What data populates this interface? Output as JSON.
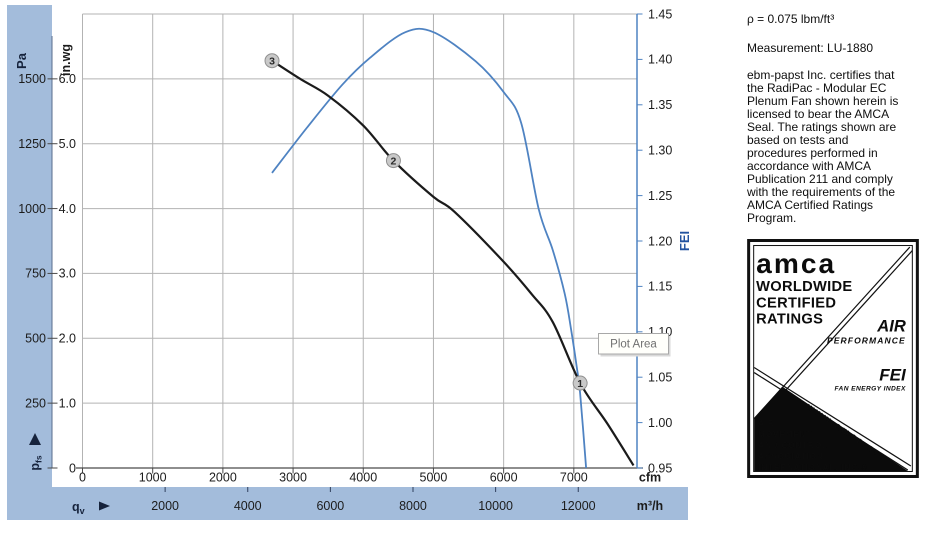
{
  "colors": {
    "band": "#a3bcdb",
    "grid": "#b3b3b3",
    "axis": "#4a4a4a",
    "band_tick": "#2f3f5c",
    "pressure_curve": "#1b1b1b",
    "fei_curve": "#4f83c2",
    "fei_axis": "#4f83c2",
    "fei_label": "#2253a0",
    "tick_label": "#1c1c1c",
    "marker_fill": "#c9c9c9",
    "marker_stroke": "#909090",
    "marker_text": "#2b2b2b",
    "tooltip_bg": "#fffffb",
    "tooltip_border": "#a8a8a8",
    "tooltip_shadow": "#d9d9d9",
    "tooltip_text": "#707070"
  },
  "chart_data": {
    "type": "line",
    "grid": true,
    "legend": "none",
    "plot_area_label": "Plot Area",
    "x_axis": {
      "unit_label": "cfm",
      "min": 0,
      "max": 7900,
      "ticks": [
        0,
        1000,
        2000,
        3000,
        4000,
        5000,
        6000,
        7000
      ]
    },
    "x_axis_secondary": {
      "unit_label": "m³/h",
      "symbol": "q",
      "symbol_sub": "v",
      "cfm_per_unit": 0.58858,
      "ticks": [
        2000,
        4000,
        6000,
        8000,
        10000,
        12000
      ]
    },
    "y_axis": {
      "unit_label": "in.wg",
      "min": 0,
      "max": 7,
      "ticks": [
        0,
        1,
        2,
        3,
        4,
        5,
        6
      ]
    },
    "y_axis_outer": {
      "unit_label": "Pa",
      "symbol": "p",
      "symbol_sub": "fs",
      "ticks": [
        250,
        500,
        750,
        1000,
        1250,
        1500
      ]
    },
    "y_axis_right": {
      "unit_label": "FEI",
      "min": 0.95,
      "max": 1.45,
      "ticks": [
        0.95,
        1.0,
        1.05,
        1.1,
        1.15,
        1.2,
        1.25,
        1.3,
        1.35,
        1.4,
        1.45
      ]
    },
    "series": [
      {
        "name": "fei-index",
        "axis": "right",
        "points": [
          [
            2700,
            1.275
          ],
          [
            3200,
            1.325
          ],
          [
            3700,
            1.372
          ],
          [
            4100,
            1.402
          ],
          [
            4600,
            1.43
          ],
          [
            5000,
            1.43
          ],
          [
            5600,
            1.398
          ],
          [
            6000,
            1.364
          ],
          [
            6250,
            1.33
          ],
          [
            6500,
            1.235
          ],
          [
            6700,
            1.19
          ],
          [
            6870,
            1.142
          ],
          [
            6960,
            1.103
          ],
          [
            7040,
            1.062
          ],
          [
            7090,
            1.032
          ],
          [
            7175,
            0.95
          ]
        ]
      },
      {
        "name": "fan-pressure",
        "axis": "left",
        "points": [
          [
            2700,
            6.28
          ],
          [
            3100,
            6.0
          ],
          [
            3500,
            5.74
          ],
          [
            4000,
            5.28
          ],
          [
            4430,
            4.74
          ],
          [
            5000,
            4.18
          ],
          [
            5300,
            3.95
          ],
          [
            6000,
            3.18
          ],
          [
            6400,
            2.68
          ],
          [
            6700,
            2.25
          ],
          [
            7090,
            1.31
          ],
          [
            7480,
            0.68
          ],
          [
            7850,
            0.04
          ]
        ]
      }
    ],
    "operating_points": [
      {
        "label": "3",
        "cfm": 2700,
        "inwg": 6.28
      },
      {
        "label": "2",
        "cfm": 4430,
        "inwg": 4.74
      },
      {
        "label": "1",
        "cfm": 7090,
        "inwg": 1.31
      }
    ]
  },
  "panel": {
    "density": "ρ = 0.075 lbm/ft³",
    "measurement": "Measurement: LU-1880",
    "certification": "ebm-papst Inc. certifies that\nthe RadiPac - Modular EC\nPlenum Fan shown herein is\nlicensed to bear the AMCA\nSeal. The ratings shown are\nbased on tests and\nprocedures performed in\naccordance with AMCA\nPublication 211 and comply\nwith the requirements of the\nAMCA Certified Ratings\nProgram."
  },
  "seal": {
    "logo": "amca",
    "head1": "WORLDWIDE",
    "head2": "CERTIFIED",
    "head3": "RATINGS",
    "air": "AIR",
    "performance": "PERFORMANCE",
    "fei": "FEI",
    "fei_sub": "FAN ENERGY INDEX",
    "website": "www.amca.org",
    "triangle_lines": [
      "AIR",
      "MOVEMENT",
      "AND CONTROL",
      "ASSOCIATION",
      "INTERNATIONAL, INC.®"
    ]
  }
}
